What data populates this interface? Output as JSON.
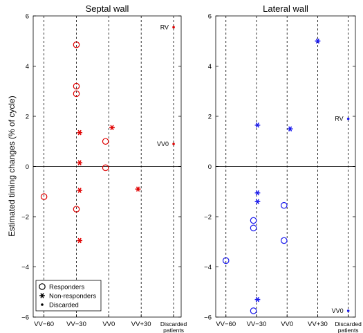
{
  "ylabel": "Estimated timing changes (% of cycle)",
  "colors": {
    "septal": "#e00000",
    "lateral": "#1a1aee",
    "axis": "#000000"
  },
  "legend": {
    "position": "bottom-left of septal panel",
    "entries": [
      {
        "marker": "circle",
        "label": "Responders"
      },
      {
        "marker": "asterisk",
        "label": "Non-responders"
      },
      {
        "marker": "dot",
        "label": "Discarded"
      }
    ]
  },
  "chart_data": [
    {
      "type": "scatter",
      "title": "Septal wall",
      "categories": [
        "VV−60",
        "VV−30",
        "VV0",
        "VV+30",
        "Discarded\npatients"
      ],
      "xlim": [
        -70,
        67
      ],
      "ylim": [
        -6,
        6
      ],
      "yticks": [
        -6,
        -4,
        -2,
        0,
        2,
        4,
        6
      ],
      "vlines": [
        -60,
        -30,
        0,
        30,
        60
      ],
      "grid": "dashed vertical lines at each category",
      "series": [
        {
          "name": "Responders",
          "marker": "circle",
          "points": [
            {
              "x": -30,
              "y": 4.85
            },
            {
              "x": -30,
              "y": 3.2
            },
            {
              "x": -30,
              "y": 2.9
            },
            {
              "x": -30,
              "y": -1.7
            },
            {
              "x": -60,
              "y": -1.2
            },
            {
              "x": -3,
              "y": 1.0
            },
            {
              "x": -3,
              "y": -0.05
            }
          ]
        },
        {
          "name": "Non-responders",
          "marker": "asterisk",
          "points": [
            {
              "x": -27,
              "y": 1.35
            },
            {
              "x": -27,
              "y": 0.15
            },
            {
              "x": -27,
              "y": -0.95
            },
            {
              "x": -27,
              "y": -2.95
            },
            {
              "x": 3,
              "y": 1.55
            },
            {
              "x": 27,
              "y": -0.9
            }
          ]
        },
        {
          "name": "Discarded",
          "marker": "dot",
          "points": [
            {
              "x": 60,
              "y": 5.55
            },
            {
              "x": 60,
              "y": 0.9
            }
          ]
        }
      ],
      "annotations": [
        {
          "text": "RV",
          "x": 60,
          "y": 5.55
        },
        {
          "text": "VV0",
          "x": 60,
          "y": 0.9
        }
      ]
    },
    {
      "type": "scatter",
      "title": "Lateral wall",
      "categories": [
        "VV−60",
        "VV−30",
        "VV0",
        "VV+30",
        "Discarded\npatients"
      ],
      "xlim": [
        -70,
        67
      ],
      "ylim": [
        -6,
        6
      ],
      "yticks": [
        -6,
        -4,
        -2,
        0,
        2,
        4,
        6
      ],
      "vlines": [
        -60,
        -30,
        0,
        30,
        60
      ],
      "grid": "dashed vertical lines at each category",
      "series": [
        {
          "name": "Responders",
          "marker": "circle",
          "points": [
            {
              "x": -60,
              "y": -3.75
            },
            {
              "x": -33,
              "y": -2.15
            },
            {
              "x": -33,
              "y": -2.45
            },
            {
              "x": -33,
              "y": -5.75
            },
            {
              "x": -3,
              "y": -1.55
            },
            {
              "x": -3,
              "y": -2.95
            }
          ]
        },
        {
          "name": "Non-responders",
          "marker": "asterisk",
          "points": [
            {
              "x": -29,
              "y": 1.65
            },
            {
              "x": -29,
              "y": -1.05
            },
            {
              "x": -29,
              "y": -1.4
            },
            {
              "x": -29,
              "y": -5.3
            },
            {
              "x": 3,
              "y": 1.5
            },
            {
              "x": 30,
              "y": 5.0
            }
          ]
        },
        {
          "name": "Discarded",
          "marker": "dot",
          "points": [
            {
              "x": 60,
              "y": 1.9
            },
            {
              "x": 60,
              "y": -5.75
            }
          ]
        }
      ],
      "annotations": [
        {
          "text": "RV",
          "x": 60,
          "y": 1.9
        },
        {
          "text": "VV0",
          "x": 60,
          "y": -5.75
        }
      ]
    }
  ]
}
